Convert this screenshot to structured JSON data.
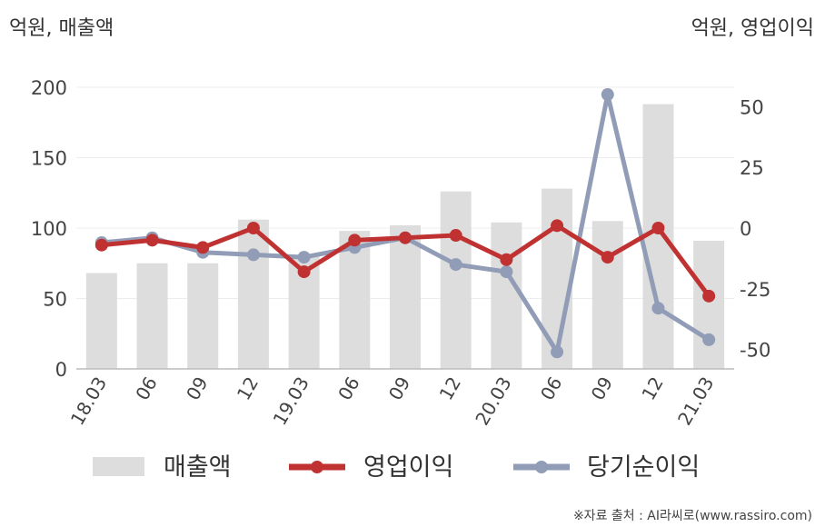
{
  "chart_data": {
    "type": "bar+line",
    "categories": [
      "18.03",
      "06",
      "09",
      "12",
      "19.03",
      "06",
      "09",
      "12",
      "20.03",
      "06",
      "09",
      "12",
      "21.03"
    ],
    "left_axis": {
      "label": "억원, 매출액",
      "range": [
        0,
        200
      ],
      "ticks": [
        "0",
        "50",
        "100",
        "150",
        "200"
      ]
    },
    "right_axis": {
      "label": "억원, 영업이익",
      "range": [
        -58,
        58
      ],
      "ticks": [
        "-50",
        "-25",
        "0",
        "25",
        "50"
      ]
    },
    "series": [
      {
        "name": "매출액",
        "type": "bar",
        "axis": "left",
        "color": "#dddddd",
        "values": [
          68,
          75,
          75,
          106,
          80,
          98,
          102,
          126,
          104,
          128,
          105,
          188,
          91
        ]
      },
      {
        "name": "영업이익",
        "type": "line",
        "axis": "right",
        "color": "#c03232",
        "values": [
          -7,
          -5,
          -8,
          0,
          -18,
          -5,
          -4,
          -3,
          -13,
          1,
          -12,
          0,
          -28
        ]
      },
      {
        "name": "당기순이익",
        "type": "line",
        "axis": "right",
        "color": "#919db7",
        "values": [
          -6,
          -4,
          -10,
          -11,
          -12,
          -8,
          -4,
          -15,
          -18,
          -51,
          55,
          -33,
          -46
        ]
      }
    ],
    "grid": true,
    "legend_position": "bottom"
  },
  "source": "※자료 출처 : AI라씨로(www.rassiro.com)"
}
